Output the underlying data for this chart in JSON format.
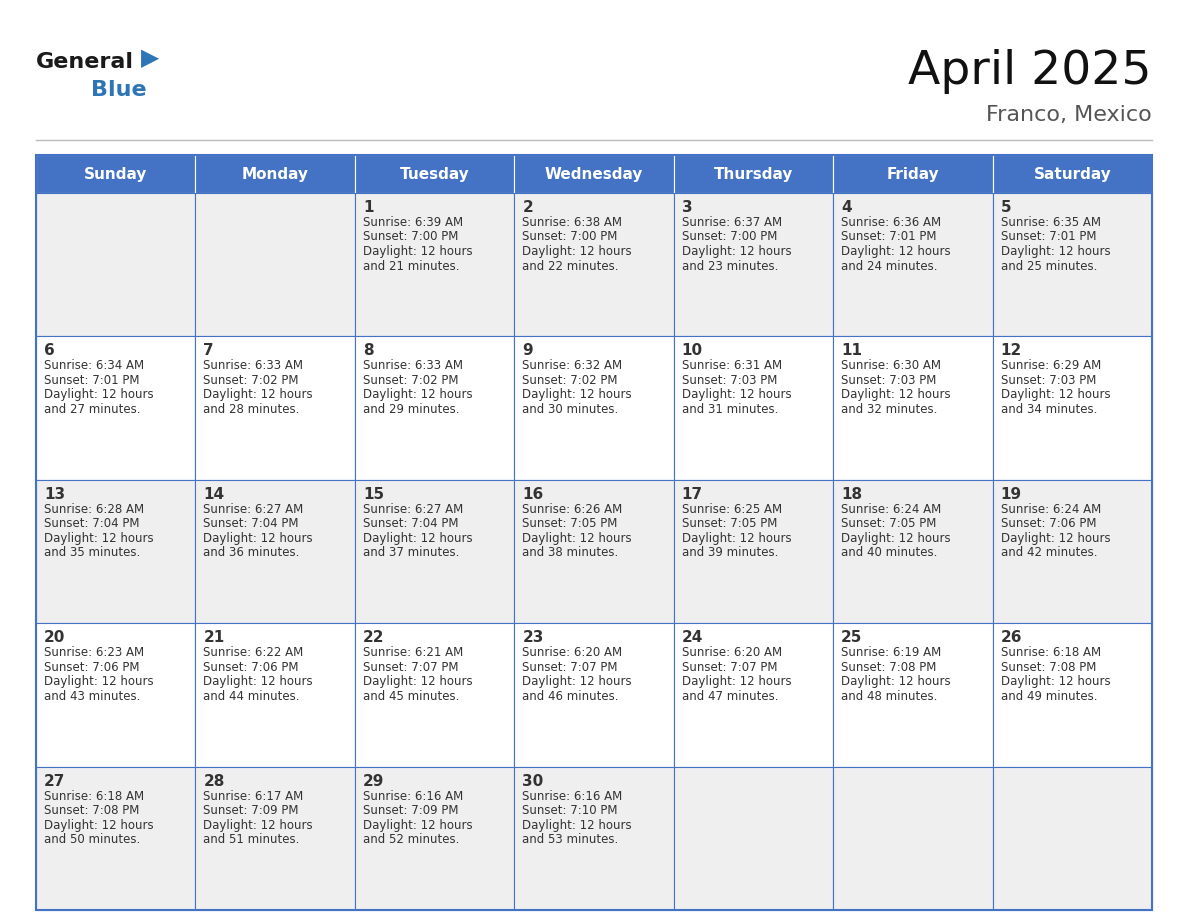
{
  "title": "April 2025",
  "subtitle": "Franco, Mexico",
  "header_bg": "#4472C4",
  "header_text_color": "#FFFFFF",
  "day_names": [
    "Sunday",
    "Monday",
    "Tuesday",
    "Wednesday",
    "Thursday",
    "Friday",
    "Saturday"
  ],
  "cell_bg_even": "#EFEFEF",
  "cell_bg_odd": "#FFFFFF",
  "cell_border_color": "#4472C4",
  "text_color": "#333333",
  "logo_general_color": "#1a1a1a",
  "logo_blue_color": "#2E75B6",
  "weeks": [
    [
      {
        "day": "",
        "lines": []
      },
      {
        "day": "",
        "lines": []
      },
      {
        "day": "1",
        "lines": [
          "Sunrise: 6:39 AM",
          "Sunset: 7:00 PM",
          "Daylight: 12 hours",
          "and 21 minutes."
        ]
      },
      {
        "day": "2",
        "lines": [
          "Sunrise: 6:38 AM",
          "Sunset: 7:00 PM",
          "Daylight: 12 hours",
          "and 22 minutes."
        ]
      },
      {
        "day": "3",
        "lines": [
          "Sunrise: 6:37 AM",
          "Sunset: 7:00 PM",
          "Daylight: 12 hours",
          "and 23 minutes."
        ]
      },
      {
        "day": "4",
        "lines": [
          "Sunrise: 6:36 AM",
          "Sunset: 7:01 PM",
          "Daylight: 12 hours",
          "and 24 minutes."
        ]
      },
      {
        "day": "5",
        "lines": [
          "Sunrise: 6:35 AM",
          "Sunset: 7:01 PM",
          "Daylight: 12 hours",
          "and 25 minutes."
        ]
      }
    ],
    [
      {
        "day": "6",
        "lines": [
          "Sunrise: 6:34 AM",
          "Sunset: 7:01 PM",
          "Daylight: 12 hours",
          "and 27 minutes."
        ]
      },
      {
        "day": "7",
        "lines": [
          "Sunrise: 6:33 AM",
          "Sunset: 7:02 PM",
          "Daylight: 12 hours",
          "and 28 minutes."
        ]
      },
      {
        "day": "8",
        "lines": [
          "Sunrise: 6:33 AM",
          "Sunset: 7:02 PM",
          "Daylight: 12 hours",
          "and 29 minutes."
        ]
      },
      {
        "day": "9",
        "lines": [
          "Sunrise: 6:32 AM",
          "Sunset: 7:02 PM",
          "Daylight: 12 hours",
          "and 30 minutes."
        ]
      },
      {
        "day": "10",
        "lines": [
          "Sunrise: 6:31 AM",
          "Sunset: 7:03 PM",
          "Daylight: 12 hours",
          "and 31 minutes."
        ]
      },
      {
        "day": "11",
        "lines": [
          "Sunrise: 6:30 AM",
          "Sunset: 7:03 PM",
          "Daylight: 12 hours",
          "and 32 minutes."
        ]
      },
      {
        "day": "12",
        "lines": [
          "Sunrise: 6:29 AM",
          "Sunset: 7:03 PM",
          "Daylight: 12 hours",
          "and 34 minutes."
        ]
      }
    ],
    [
      {
        "day": "13",
        "lines": [
          "Sunrise: 6:28 AM",
          "Sunset: 7:04 PM",
          "Daylight: 12 hours",
          "and 35 minutes."
        ]
      },
      {
        "day": "14",
        "lines": [
          "Sunrise: 6:27 AM",
          "Sunset: 7:04 PM",
          "Daylight: 12 hours",
          "and 36 minutes."
        ]
      },
      {
        "day": "15",
        "lines": [
          "Sunrise: 6:27 AM",
          "Sunset: 7:04 PM",
          "Daylight: 12 hours",
          "and 37 minutes."
        ]
      },
      {
        "day": "16",
        "lines": [
          "Sunrise: 6:26 AM",
          "Sunset: 7:05 PM",
          "Daylight: 12 hours",
          "and 38 minutes."
        ]
      },
      {
        "day": "17",
        "lines": [
          "Sunrise: 6:25 AM",
          "Sunset: 7:05 PM",
          "Daylight: 12 hours",
          "and 39 minutes."
        ]
      },
      {
        "day": "18",
        "lines": [
          "Sunrise: 6:24 AM",
          "Sunset: 7:05 PM",
          "Daylight: 12 hours",
          "and 40 minutes."
        ]
      },
      {
        "day": "19",
        "lines": [
          "Sunrise: 6:24 AM",
          "Sunset: 7:06 PM",
          "Daylight: 12 hours",
          "and 42 minutes."
        ]
      }
    ],
    [
      {
        "day": "20",
        "lines": [
          "Sunrise: 6:23 AM",
          "Sunset: 7:06 PM",
          "Daylight: 12 hours",
          "and 43 minutes."
        ]
      },
      {
        "day": "21",
        "lines": [
          "Sunrise: 6:22 AM",
          "Sunset: 7:06 PM",
          "Daylight: 12 hours",
          "and 44 minutes."
        ]
      },
      {
        "day": "22",
        "lines": [
          "Sunrise: 6:21 AM",
          "Sunset: 7:07 PM",
          "Daylight: 12 hours",
          "and 45 minutes."
        ]
      },
      {
        "day": "23",
        "lines": [
          "Sunrise: 6:20 AM",
          "Sunset: 7:07 PM",
          "Daylight: 12 hours",
          "and 46 minutes."
        ]
      },
      {
        "day": "24",
        "lines": [
          "Sunrise: 6:20 AM",
          "Sunset: 7:07 PM",
          "Daylight: 12 hours",
          "and 47 minutes."
        ]
      },
      {
        "day": "25",
        "lines": [
          "Sunrise: 6:19 AM",
          "Sunset: 7:08 PM",
          "Daylight: 12 hours",
          "and 48 minutes."
        ]
      },
      {
        "day": "26",
        "lines": [
          "Sunrise: 6:18 AM",
          "Sunset: 7:08 PM",
          "Daylight: 12 hours",
          "and 49 minutes."
        ]
      }
    ],
    [
      {
        "day": "27",
        "lines": [
          "Sunrise: 6:18 AM",
          "Sunset: 7:08 PM",
          "Daylight: 12 hours",
          "and 50 minutes."
        ]
      },
      {
        "day": "28",
        "lines": [
          "Sunrise: 6:17 AM",
          "Sunset: 7:09 PM",
          "Daylight: 12 hours",
          "and 51 minutes."
        ]
      },
      {
        "day": "29",
        "lines": [
          "Sunrise: 6:16 AM",
          "Sunset: 7:09 PM",
          "Daylight: 12 hours",
          "and 52 minutes."
        ]
      },
      {
        "day": "30",
        "lines": [
          "Sunrise: 6:16 AM",
          "Sunset: 7:10 PM",
          "Daylight: 12 hours",
          "and 53 minutes."
        ]
      },
      {
        "day": "",
        "lines": []
      },
      {
        "day": "",
        "lines": []
      },
      {
        "day": "",
        "lines": []
      }
    ]
  ]
}
